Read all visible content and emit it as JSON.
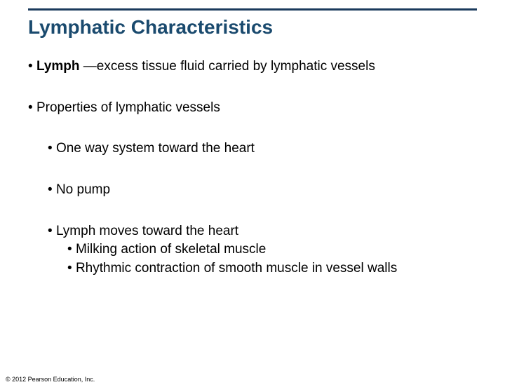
{
  "slide": {
    "title": "Lymphatic Characteristics",
    "title_color": "#1a4a6e",
    "rule_color": "#1a3a5c",
    "background": "#ffffff",
    "body_color": "#000000",
    "bullets": {
      "bullet_char": "•",
      "lymph_label": "Lymph",
      "lymph_def": " —excess tissue fluid carried by lymphatic vessels",
      "properties": "Properties of lymphatic vessels",
      "sub": {
        "oneway": "One way system toward the heart",
        "nopump": "No pump",
        "moves": "Lymph moves toward the heart",
        "milking": "Milking action of skeletal muscle",
        "rhythmic": "Rhythmic contraction of smooth muscle in vessel walls"
      }
    },
    "copyright": "© 2012 Pearson Education, Inc."
  }
}
